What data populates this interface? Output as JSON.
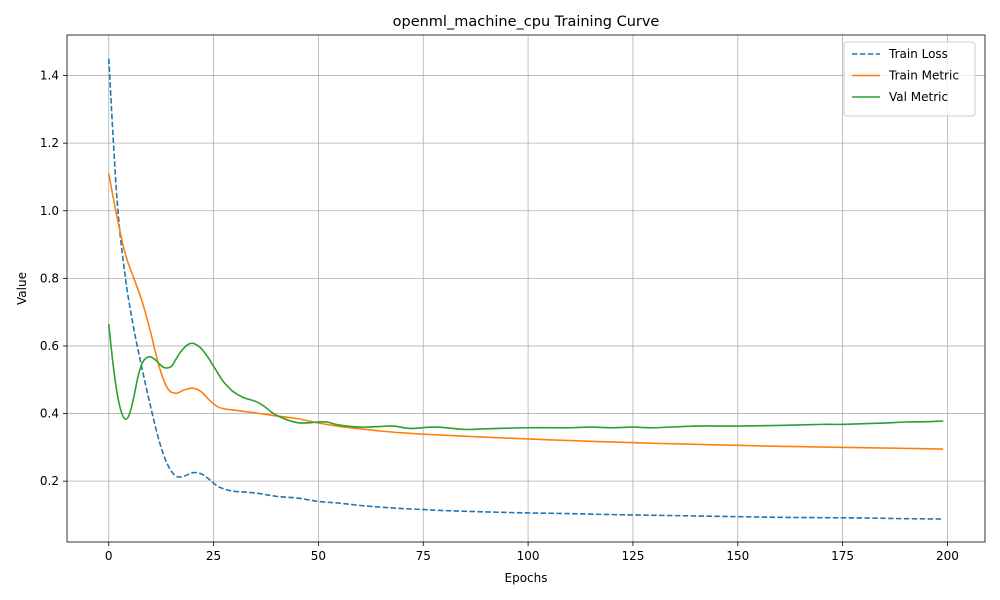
{
  "chart_data": {
    "type": "line",
    "title": "openml_machine_cpu Training Curve",
    "xlabel": "Epochs",
    "ylabel": "Value",
    "xlim": [
      -9.95,
      208.95
    ],
    "ylim": [
      0.02,
      1.52
    ],
    "xticks": [
      0,
      25,
      50,
      75,
      100,
      125,
      150,
      175,
      200
    ],
    "yticks": [
      0.2,
      0.4,
      0.6,
      0.8,
      1.0,
      1.2,
      1.4
    ],
    "xtick_labels": [
      "0",
      "25",
      "50",
      "75",
      "100",
      "125",
      "150",
      "175",
      "200"
    ],
    "ytick_labels": [
      "0.2",
      "0.4",
      "0.6",
      "0.8",
      "1.0",
      "1.2",
      "1.4"
    ],
    "grid": true,
    "legend_position": "top-right",
    "series": [
      {
        "name": "Train Loss",
        "color": "#1f77b4",
        "style": "dashed",
        "x": [
          0,
          2,
          4,
          6,
          8,
          10,
          12,
          14,
          16,
          18,
          20,
          22,
          24,
          26,
          28,
          30,
          35,
          40,
          45,
          50,
          55,
          60,
          65,
          70,
          75,
          80,
          90,
          100,
          110,
          120,
          130,
          140,
          150,
          160,
          170,
          180,
          190,
          199
        ],
        "values": [
          1.45,
          1.03,
          0.8,
          0.65,
          0.53,
          0.42,
          0.32,
          0.25,
          0.215,
          0.215,
          0.225,
          0.222,
          0.205,
          0.185,
          0.175,
          0.17,
          0.165,
          0.155,
          0.15,
          0.14,
          0.135,
          0.128,
          0.123,
          0.119,
          0.116,
          0.113,
          0.109,
          0.106,
          0.104,
          0.101,
          0.099,
          0.097,
          0.095,
          0.093,
          0.092,
          0.091,
          0.089,
          0.088
        ]
      },
      {
        "name": "Train Metric",
        "color": "#ff7f0e",
        "style": "solid",
        "x": [
          0,
          2,
          4,
          6,
          8,
          10,
          12,
          14,
          16,
          18,
          20,
          22,
          24,
          26,
          28,
          30,
          35,
          40,
          45,
          50,
          55,
          60,
          65,
          70,
          75,
          80,
          90,
          100,
          110,
          120,
          130,
          140,
          150,
          160,
          170,
          180,
          190,
          199
        ],
        "values": [
          1.11,
          0.98,
          0.87,
          0.8,
          0.73,
          0.64,
          0.54,
          0.475,
          0.46,
          0.47,
          0.475,
          0.465,
          0.44,
          0.42,
          0.413,
          0.41,
          0.402,
          0.393,
          0.385,
          0.372,
          0.362,
          0.355,
          0.348,
          0.343,
          0.339,
          0.336,
          0.33,
          0.325,
          0.32,
          0.316,
          0.312,
          0.309,
          0.306,
          0.303,
          0.301,
          0.299,
          0.297,
          0.295
        ]
      },
      {
        "name": "Val Metric",
        "color": "#2ca02c",
        "style": "solid",
        "x": [
          0,
          1,
          2,
          3,
          4,
          5,
          6,
          7,
          8,
          9,
          10,
          11,
          12,
          13,
          14,
          15,
          16,
          17,
          18,
          19,
          20,
          21,
          22,
          23,
          24,
          25,
          26,
          27,
          28,
          29,
          30,
          32,
          35,
          37,
          40,
          45,
          50,
          52,
          55,
          60,
          65,
          68,
          72,
          78,
          85,
          90,
          100,
          110,
          115,
          120,
          125,
          130,
          140,
          150,
          160,
          170,
          175,
          180,
          185,
          190,
          195,
          199
        ],
        "values": [
          0.665,
          0.55,
          0.46,
          0.405,
          0.383,
          0.4,
          0.45,
          0.51,
          0.55,
          0.565,
          0.568,
          0.56,
          0.548,
          0.537,
          0.535,
          0.54,
          0.56,
          0.58,
          0.595,
          0.605,
          0.608,
          0.603,
          0.593,
          0.578,
          0.56,
          0.54,
          0.52,
          0.5,
          0.485,
          0.472,
          0.462,
          0.448,
          0.436,
          0.422,
          0.395,
          0.373,
          0.375,
          0.375,
          0.366,
          0.36,
          0.362,
          0.363,
          0.356,
          0.36,
          0.353,
          0.355,
          0.358,
          0.358,
          0.36,
          0.358,
          0.36,
          0.358,
          0.363,
          0.363,
          0.365,
          0.368,
          0.368,
          0.37,
          0.372,
          0.375,
          0.376,
          0.378
        ]
      }
    ]
  }
}
